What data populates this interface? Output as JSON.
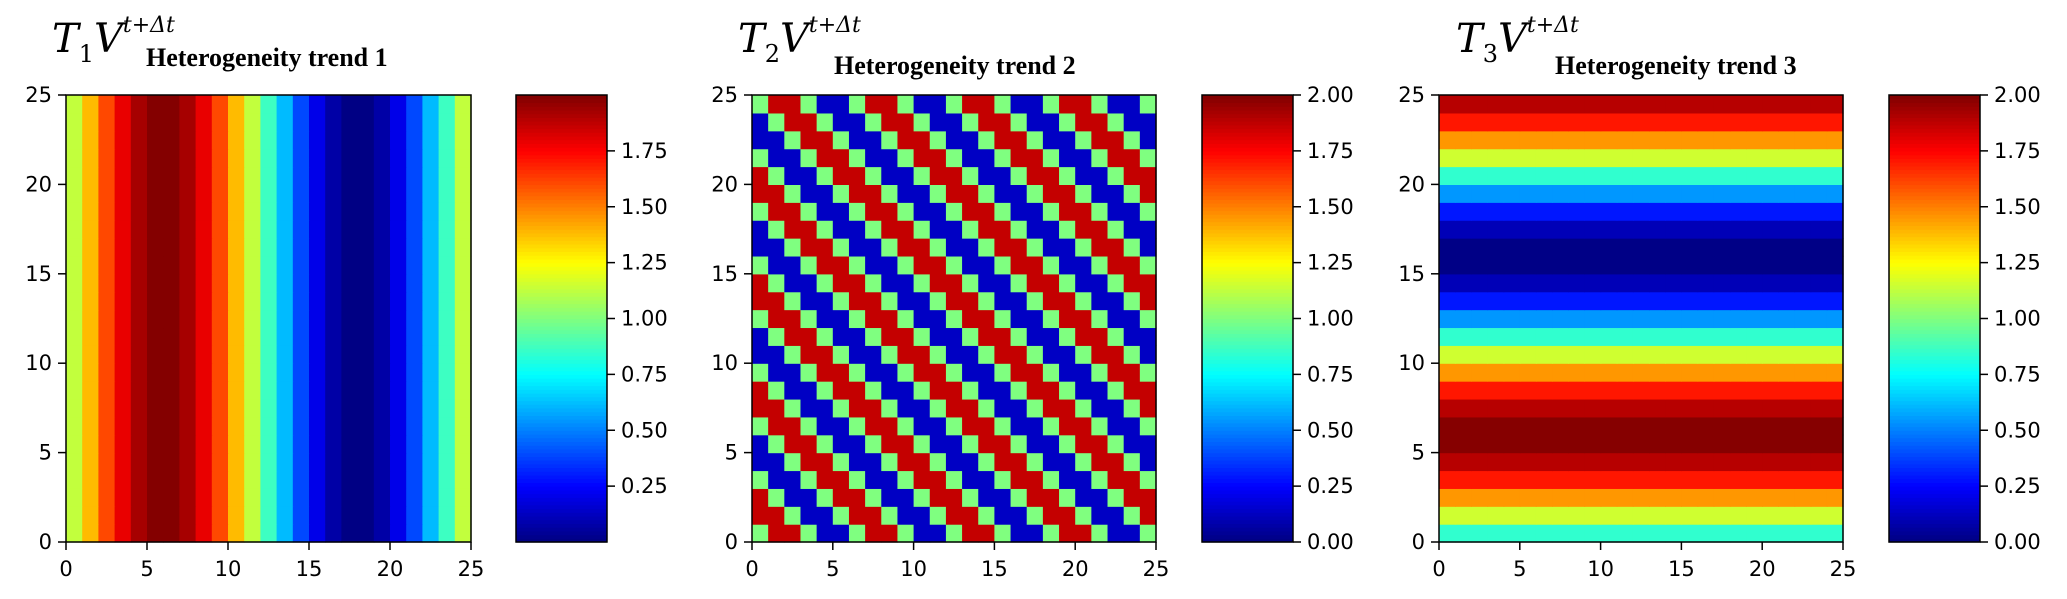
{
  "chart_data": [
    {
      "type": "heatmap",
      "pattern": "vertical-stripes",
      "title_math": {
        "symbol": "T",
        "index": "1",
        "var": "V",
        "superscript": "t+Δt"
      },
      "title": "Heterogeneity trend 1",
      "xlim": [
        0,
        25
      ],
      "ylim": [
        0,
        25
      ],
      "xticks": [
        "0",
        "5",
        "10",
        "15",
        "20",
        "25"
      ],
      "yticks": [
        "0",
        "5",
        "10",
        "15",
        "20",
        "25"
      ],
      "grid_size": 25,
      "formula": "1 + sin(2π (x + 0.5) / 24)",
      "colorbar": {
        "colormap": "jet",
        "range": [
          0,
          2
        ],
        "ticks": [
          "0.25",
          "0.50",
          "0.75",
          "1.00",
          "1.25",
          "1.50",
          "1.75"
        ],
        "tick_values": [
          0.25,
          0.5,
          0.75,
          1.0,
          1.25,
          1.5,
          1.75
        ]
      }
    },
    {
      "type": "heatmap",
      "pattern": "diagonal-stripes",
      "title_math": {
        "symbol": "T",
        "index": "2",
        "var": "V",
        "superscript": "t+Δt"
      },
      "title": "Heterogeneity trend 2",
      "xlim": [
        0,
        25
      ],
      "ylim": [
        0,
        25
      ],
      "xticks": [
        "0",
        "5",
        "10",
        "15",
        "20",
        "25"
      ],
      "yticks": [
        "0",
        "5",
        "10",
        "15",
        "20",
        "25"
      ],
      "grid_size": 25,
      "formula": "1 + sin(2π (x + y) / 6)",
      "colorbar": {
        "colormap": "jet",
        "range": [
          0,
          2
        ],
        "ticks": [
          "0.00",
          "0.25",
          "0.50",
          "0.75",
          "1.00",
          "1.25",
          "1.50",
          "1.75",
          "2.00"
        ],
        "tick_values": [
          0,
          0.25,
          0.5,
          0.75,
          1.0,
          1.25,
          1.5,
          1.75,
          2.0
        ]
      }
    },
    {
      "type": "heatmap",
      "pattern": "horizontal-stripes",
      "title_math": {
        "symbol": "T",
        "index": "3",
        "var": "V",
        "superscript": "t+Δt"
      },
      "title": "Heterogeneity trend 3",
      "xlim": [
        0,
        25
      ],
      "ylim": [
        0,
        25
      ],
      "xticks": [
        "0",
        "5",
        "10",
        "15",
        "20",
        "25"
      ],
      "yticks": [
        "0",
        "5",
        "10",
        "15",
        "20",
        "25"
      ],
      "grid_size": 25,
      "formula": "1 + sin(2π (y - 0.5) / 20)",
      "colorbar": {
        "colormap": "jet",
        "range": [
          0,
          2
        ],
        "ticks": [
          "0.00",
          "0.25",
          "0.50",
          "0.75",
          "1.00",
          "1.25",
          "1.50",
          "1.75",
          "2.00"
        ],
        "tick_values": [
          0,
          0.25,
          0.5,
          0.75,
          1.0,
          1.25,
          1.5,
          1.75,
          2.0
        ]
      }
    }
  ]
}
